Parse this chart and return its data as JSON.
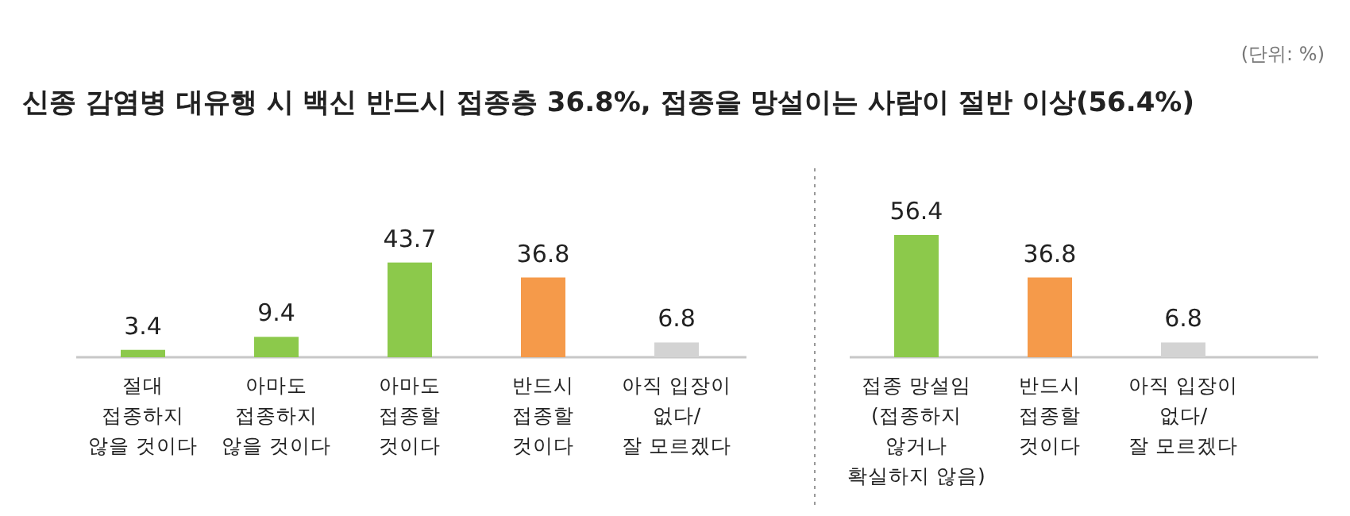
{
  "chart_data": [
    {
      "type": "bar",
      "title": "신종 감염병 대유행 시 백신 반드시 접종층 36.8%, 접종을 망설이는 사람이 절반 이상(56.4%)",
      "categories": [
        "절대\n접종하지\n않을 것이다",
        "아마도\n접종하지\n않을 것이다",
        "아마도\n접종할\n것이다",
        "반드시\n접종할\n것이다",
        "아직 입장이\n없다/\n잘 모르겠다"
      ],
      "values": [
        3.4,
        9.4,
        43.7,
        36.8,
        6.8
      ],
      "colors": [
        "#8cc94b",
        "#8cc94b",
        "#8cc94b",
        "#f59a4a",
        "#d3d3d3"
      ],
      "data_labels": true
    },
    {
      "type": "bar",
      "annotations": [
        "(단위: %)"
      ],
      "categories": [
        "접종 망설임\n(접종하지\n않거나\n확실하지 않음)",
        "반드시\n접종할\n것이다",
        "아직 입장이\n없다/\n잘 모르겠다"
      ],
      "values": [
        56.4,
        36.8,
        6.8
      ],
      "colors": [
        "#8cc94b",
        "#f59a4a",
        "#d3d3d3"
      ],
      "data_labels": true
    }
  ]
}
